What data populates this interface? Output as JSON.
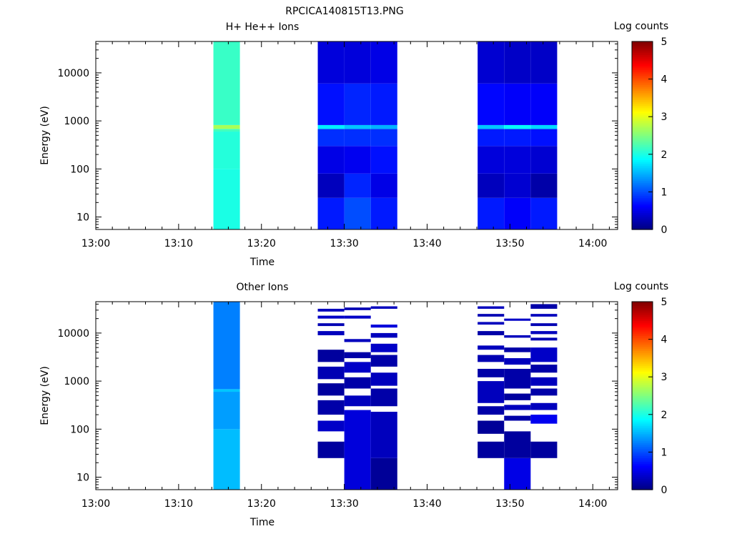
{
  "figure_title": "RPCICA140815T13.PNG",
  "chart_data": [
    {
      "type": "heatmap",
      "title": "H+ He++ Ions",
      "xlabel": "Time",
      "ylabel": "Energy (eV)",
      "x_ticks": [
        "13:00",
        "13:10",
        "13:20",
        "13:30",
        "13:40",
        "13:50",
        "14:00"
      ],
      "x_range_minutes": [
        0,
        63
      ],
      "y_ticks": [
        "10",
        "100",
        "1000",
        "10000"
      ],
      "y_range": [
        5.5,
        45000
      ],
      "y_scale": "log",
      "colorbar": {
        "label": "Log counts",
        "ticks": [
          "0",
          "1",
          "2",
          "3",
          "4",
          "5"
        ],
        "range": [
          0,
          5
        ],
        "colormap": "jet"
      },
      "columns": [
        {
          "start": 14.2,
          "end": 17.4,
          "segments": [
            {
              "e_lo": 5.5,
              "e_hi": 100,
              "v": 2.0
            },
            {
              "e_lo": 100,
              "e_hi": 600,
              "v": 2.05
            },
            {
              "e_lo": 600,
              "e_hi": 680,
              "v": 2.2
            },
            {
              "e_lo": 680,
              "e_hi": 820,
              "v": 2.7
            },
            {
              "e_lo": 820,
              "e_hi": 45000,
              "v": 2.15
            }
          ]
        },
        {
          "start": 26.8,
          "end": 30.0,
          "segments": [
            {
              "e_lo": 5.5,
              "e_hi": 25,
              "v": 0.75
            },
            {
              "e_lo": 25,
              "e_hi": 80,
              "v": 0.3
            },
            {
              "e_lo": 80,
              "e_hi": 300,
              "v": 0.5
            },
            {
              "e_lo": 300,
              "e_hi": 680,
              "v": 0.85
            },
            {
              "e_lo": 680,
              "e_hi": 820,
              "v": 1.8
            },
            {
              "e_lo": 820,
              "e_hi": 6000,
              "v": 0.7
            },
            {
              "e_lo": 6000,
              "e_hi": 45000,
              "v": 0.45
            }
          ]
        },
        {
          "start": 30.0,
          "end": 33.2,
          "segments": [
            {
              "e_lo": 5.5,
              "e_hi": 25,
              "v": 1.0
            },
            {
              "e_lo": 25,
              "e_hi": 80,
              "v": 0.8
            },
            {
              "e_lo": 80,
              "e_hi": 300,
              "v": 0.55
            },
            {
              "e_lo": 300,
              "e_hi": 680,
              "v": 0.85
            },
            {
              "e_lo": 680,
              "e_hi": 820,
              "v": 1.6
            },
            {
              "e_lo": 820,
              "e_hi": 6000,
              "v": 0.8
            },
            {
              "e_lo": 6000,
              "e_hi": 45000,
              "v": 0.45
            }
          ]
        },
        {
          "start": 33.2,
          "end": 36.4,
          "segments": [
            {
              "e_lo": 5.5,
              "e_hi": 25,
              "v": 0.75
            },
            {
              "e_lo": 25,
              "e_hi": 80,
              "v": 0.5
            },
            {
              "e_lo": 80,
              "e_hi": 300,
              "v": 0.7
            },
            {
              "e_lo": 300,
              "e_hi": 680,
              "v": 0.85
            },
            {
              "e_lo": 680,
              "e_hi": 820,
              "v": 1.5
            },
            {
              "e_lo": 820,
              "e_hi": 6000,
              "v": 0.75
            },
            {
              "e_lo": 6000,
              "e_hi": 45000,
              "v": 0.5
            }
          ]
        },
        {
          "start": 46.1,
          "end": 49.3,
          "segments": [
            {
              "e_lo": 5.5,
              "e_hi": 25,
              "v": 0.75
            },
            {
              "e_lo": 25,
              "e_hi": 80,
              "v": 0.3
            },
            {
              "e_lo": 80,
              "e_hi": 300,
              "v": 0.45
            },
            {
              "e_lo": 300,
              "e_hi": 680,
              "v": 0.75
            },
            {
              "e_lo": 680,
              "e_hi": 820,
              "v": 1.6
            },
            {
              "e_lo": 820,
              "e_hi": 6000,
              "v": 0.65
            },
            {
              "e_lo": 6000,
              "e_hi": 45000,
              "v": 0.4
            }
          ]
        },
        {
          "start": 49.3,
          "end": 52.5,
          "segments": [
            {
              "e_lo": 5.5,
              "e_hi": 25,
              "v": 0.6
            },
            {
              "e_lo": 25,
              "e_hi": 80,
              "v": 0.4
            },
            {
              "e_lo": 80,
              "e_hi": 300,
              "v": 0.45
            },
            {
              "e_lo": 300,
              "e_hi": 680,
              "v": 0.75
            },
            {
              "e_lo": 680,
              "e_hi": 820,
              "v": 1.9
            },
            {
              "e_lo": 820,
              "e_hi": 6000,
              "v": 0.6
            },
            {
              "e_lo": 6000,
              "e_hi": 45000,
              "v": 0.35
            }
          ]
        },
        {
          "start": 52.5,
          "end": 55.7,
          "segments": [
            {
              "e_lo": 5.5,
              "e_hi": 25,
              "v": 0.75
            },
            {
              "e_lo": 25,
              "e_hi": 80,
              "v": 0.2
            },
            {
              "e_lo": 80,
              "e_hi": 300,
              "v": 0.4
            },
            {
              "e_lo": 300,
              "e_hi": 680,
              "v": 0.7
            },
            {
              "e_lo": 680,
              "e_hi": 820,
              "v": 1.7
            },
            {
              "e_lo": 820,
              "e_hi": 6000,
              "v": 0.6
            },
            {
              "e_lo": 6000,
              "e_hi": 45000,
              "v": 0.35
            }
          ]
        }
      ]
    },
    {
      "type": "heatmap",
      "title": "Other Ions",
      "xlabel": "Time",
      "ylabel": "Energy (eV)",
      "x_ticks": [
        "13:00",
        "13:10",
        "13:20",
        "13:30",
        "13:40",
        "13:50",
        "14:00"
      ],
      "x_range_minutes": [
        0,
        63
      ],
      "y_ticks": [
        "10",
        "100",
        "1000",
        "10000"
      ],
      "y_range": [
        5.5,
        45000
      ],
      "y_scale": "log",
      "colorbar": {
        "label": "Log counts",
        "ticks": [
          "0",
          "1",
          "2",
          "3",
          "4",
          "5"
        ],
        "range": [
          0,
          5
        ],
        "colormap": "jet"
      },
      "columns": [
        {
          "start": 14.2,
          "end": 17.4,
          "segments": [
            {
              "e_lo": 5.5,
              "e_hi": 100,
              "v": 1.55
            },
            {
              "e_lo": 100,
              "e_hi": 600,
              "v": 1.4
            },
            {
              "e_lo": 600,
              "e_hi": 680,
              "v": 1.6
            },
            {
              "e_lo": 680,
              "e_hi": 45000,
              "v": 1.25
            }
          ]
        },
        {
          "start": 26.8,
          "end": 30.0,
          "segments": [
            {
              "e_lo": 25,
              "e_hi": 55,
              "v": 0.15
            },
            {
              "e_lo": 90,
              "e_hi": 150,
              "v": 0.35
            },
            {
              "e_lo": 200,
              "e_hi": 400,
              "v": 0.2
            },
            {
              "e_lo": 500,
              "e_hi": 900,
              "v": 0.15
            },
            {
              "e_lo": 1100,
              "e_hi": 2000,
              "v": 0.25
            },
            {
              "e_lo": 2500,
              "e_hi": 4500,
              "v": 0.15
            },
            {
              "e_lo": 9000,
              "e_hi": 11000,
              "v": 0.3
            },
            {
              "e_lo": 14000,
              "e_hi": 16000,
              "v": 0.25
            },
            {
              "e_lo": 20000,
              "e_hi": 23000,
              "v": 0.35
            },
            {
              "e_lo": 28000,
              "e_hi": 32000,
              "v": 0.3
            }
          ]
        },
        {
          "start": 30.0,
          "end": 33.2,
          "segments": [
            {
              "e_lo": 5.5,
              "e_hi": 250,
              "v": 0.45
            },
            {
              "e_lo": 300,
              "e_hi": 500,
              "v": 0.3
            },
            {
              "e_lo": 700,
              "e_hi": 1200,
              "v": 0.2
            },
            {
              "e_lo": 1500,
              "e_hi": 2500,
              "v": 0.35
            },
            {
              "e_lo": 3000,
              "e_hi": 4000,
              "v": 0.2
            },
            {
              "e_lo": 6500,
              "e_hi": 7500,
              "v": 0.3
            },
            {
              "e_lo": 20000,
              "e_hi": 23000,
              "v": 0.35
            },
            {
              "e_lo": 30000,
              "e_hi": 34000,
              "v": 0.25
            }
          ]
        },
        {
          "start": 33.2,
          "end": 36.4,
          "segments": [
            {
              "e_lo": 5.5,
              "e_hi": 25,
              "v": 0.12
            },
            {
              "e_lo": 25,
              "e_hi": 230,
              "v": 0.3
            },
            {
              "e_lo": 300,
              "e_hi": 700,
              "v": 0.2
            },
            {
              "e_lo": 800,
              "e_hi": 1500,
              "v": 0.3
            },
            {
              "e_lo": 2000,
              "e_hi": 3500,
              "v": 0.2
            },
            {
              "e_lo": 4000,
              "e_hi": 6000,
              "v": 0.35
            },
            {
              "e_lo": 8000,
              "e_hi": 10000,
              "v": 0.3
            },
            {
              "e_lo": 13000,
              "e_hi": 15000,
              "v": 0.45
            },
            {
              "e_lo": 32000,
              "e_hi": 36000,
              "v": 0.3
            }
          ]
        },
        {
          "start": 46.1,
          "end": 49.3,
          "segments": [
            {
              "e_lo": 25,
              "e_hi": 55,
              "v": 0.15
            },
            {
              "e_lo": 80,
              "e_hi": 150,
              "v": 0.12
            },
            {
              "e_lo": 200,
              "e_hi": 300,
              "v": 0.2
            },
            {
              "e_lo": 350,
              "e_hi": 1000,
              "v": 0.3
            },
            {
              "e_lo": 1200,
              "e_hi": 1800,
              "v": 0.2
            },
            {
              "e_lo": 2500,
              "e_hi": 3500,
              "v": 0.25
            },
            {
              "e_lo": 4500,
              "e_hi": 5500,
              "v": 0.3
            },
            {
              "e_lo": 9000,
              "e_hi": 11000,
              "v": 0.2
            },
            {
              "e_lo": 15000,
              "e_hi": 17000,
              "v": 0.3
            },
            {
              "e_lo": 22000,
              "e_hi": 25000,
              "v": 0.25
            },
            {
              "e_lo": 32000,
              "e_hi": 36000,
              "v": 0.3
            }
          ]
        },
        {
          "start": 49.3,
          "end": 52.5,
          "segments": [
            {
              "e_lo": 5.5,
              "e_hi": 25,
              "v": 0.5
            },
            {
              "e_lo": 25,
              "e_hi": 90,
              "v": 0.15
            },
            {
              "e_lo": 150,
              "e_hi": 190,
              "v": 0.2
            },
            {
              "e_lo": 250,
              "e_hi": 320,
              "v": 0.3
            },
            {
              "e_lo": 400,
              "e_hi": 550,
              "v": 0.15
            },
            {
              "e_lo": 700,
              "e_hi": 1800,
              "v": 0.2
            },
            {
              "e_lo": 2200,
              "e_hi": 3000,
              "v": 0.3
            },
            {
              "e_lo": 4000,
              "e_hi": 5000,
              "v": 0.2
            },
            {
              "e_lo": 8000,
              "e_hi": 9000,
              "v": 0.3
            },
            {
              "e_lo": 18000,
              "e_hi": 20000,
              "v": 0.35
            }
          ]
        },
        {
          "start": 52.5,
          "end": 55.7,
          "segments": [
            {
              "e_lo": 25,
              "e_hi": 55,
              "v": 0.15
            },
            {
              "e_lo": 130,
              "e_hi": 200,
              "v": 0.55
            },
            {
              "e_lo": 250,
              "e_hi": 350,
              "v": 0.3
            },
            {
              "e_lo": 500,
              "e_hi": 700,
              "v": 0.2
            },
            {
              "e_lo": 800,
              "e_hi": 1200,
              "v": 0.3
            },
            {
              "e_lo": 1500,
              "e_hi": 2200,
              "v": 0.2
            },
            {
              "e_lo": 2500,
              "e_hi": 5000,
              "v": 0.35
            },
            {
              "e_lo": 7000,
              "e_hi": 8000,
              "v": 0.25
            },
            {
              "e_lo": 9500,
              "e_hi": 11000,
              "v": 0.3
            },
            {
              "e_lo": 14000,
              "e_hi": 16000,
              "v": 0.25
            },
            {
              "e_lo": 22000,
              "e_hi": 25000,
              "v": 0.3
            },
            {
              "e_lo": 32000,
              "e_hi": 40000,
              "v": 0.2
            }
          ]
        }
      ]
    }
  ]
}
